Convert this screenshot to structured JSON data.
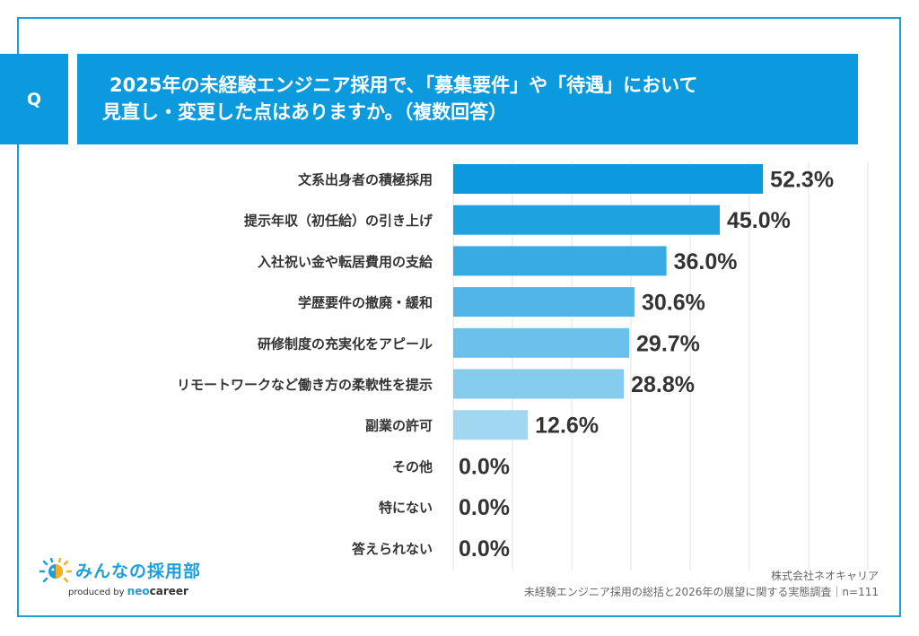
{
  "header": {
    "q_label": "Q",
    "title_line1": "2025年の未経験エンジニア採用で、「募集要件」や「待遇」において",
    "title_line2": "見直し・変更した点はありますか。（複数回答）"
  },
  "colors": {
    "accent": "#0b9ade",
    "frame": "#1a9fd9",
    "bars": [
      "#0b9ade",
      "#1ea3e0",
      "#38abe3",
      "#52b5e8",
      "#6cc0ec",
      "#84cbed",
      "#a2d7f1",
      "#a2d7f1",
      "#a2d7f1",
      "#a2d7f1"
    ],
    "gridline": "#e3e3e3"
  },
  "chart_data": {
    "type": "bar",
    "orientation": "horizontal",
    "title": "2025年の未経験エンジニア採用で、「募集要件」や「待遇」において見直し・変更した点はありますか。（複数回答）",
    "xlabel": "",
    "ylabel": "",
    "xlim": [
      0,
      70
    ],
    "grid": true,
    "unit": "%",
    "categories": [
      "文系出身者の積極採用",
      "提示年収（初任給）の引き上げ",
      "入社祝い金や転居費用の支給",
      "学歴要件の撤廃・緩和",
      "研修制度の充実化をアピール",
      "リモートワークなど働き方の柔軟性を提示",
      "副業の許可",
      "その他",
      "特にない",
      "答えられない"
    ],
    "values": [
      52.3,
      45.0,
      36.0,
      30.6,
      29.7,
      28.8,
      12.6,
      0.0,
      0.0,
      0.0
    ],
    "value_labels": [
      "52.3%",
      "45.0%",
      "36.0%",
      "30.6%",
      "29.7%",
      "28.8%",
      "12.6%",
      "0.0%",
      "0.0%",
      "0.0%"
    ]
  },
  "footer": {
    "logo_main": "みんなの採用部",
    "logo_produced_by": "produced by ",
    "logo_neo": "neo",
    "logo_career": "career",
    "source_line1": "株式会社ネオキャリア",
    "source_line2": "未経験エンジニア採用の総括と2026年の展望に関する実態調査｜n=111"
  }
}
